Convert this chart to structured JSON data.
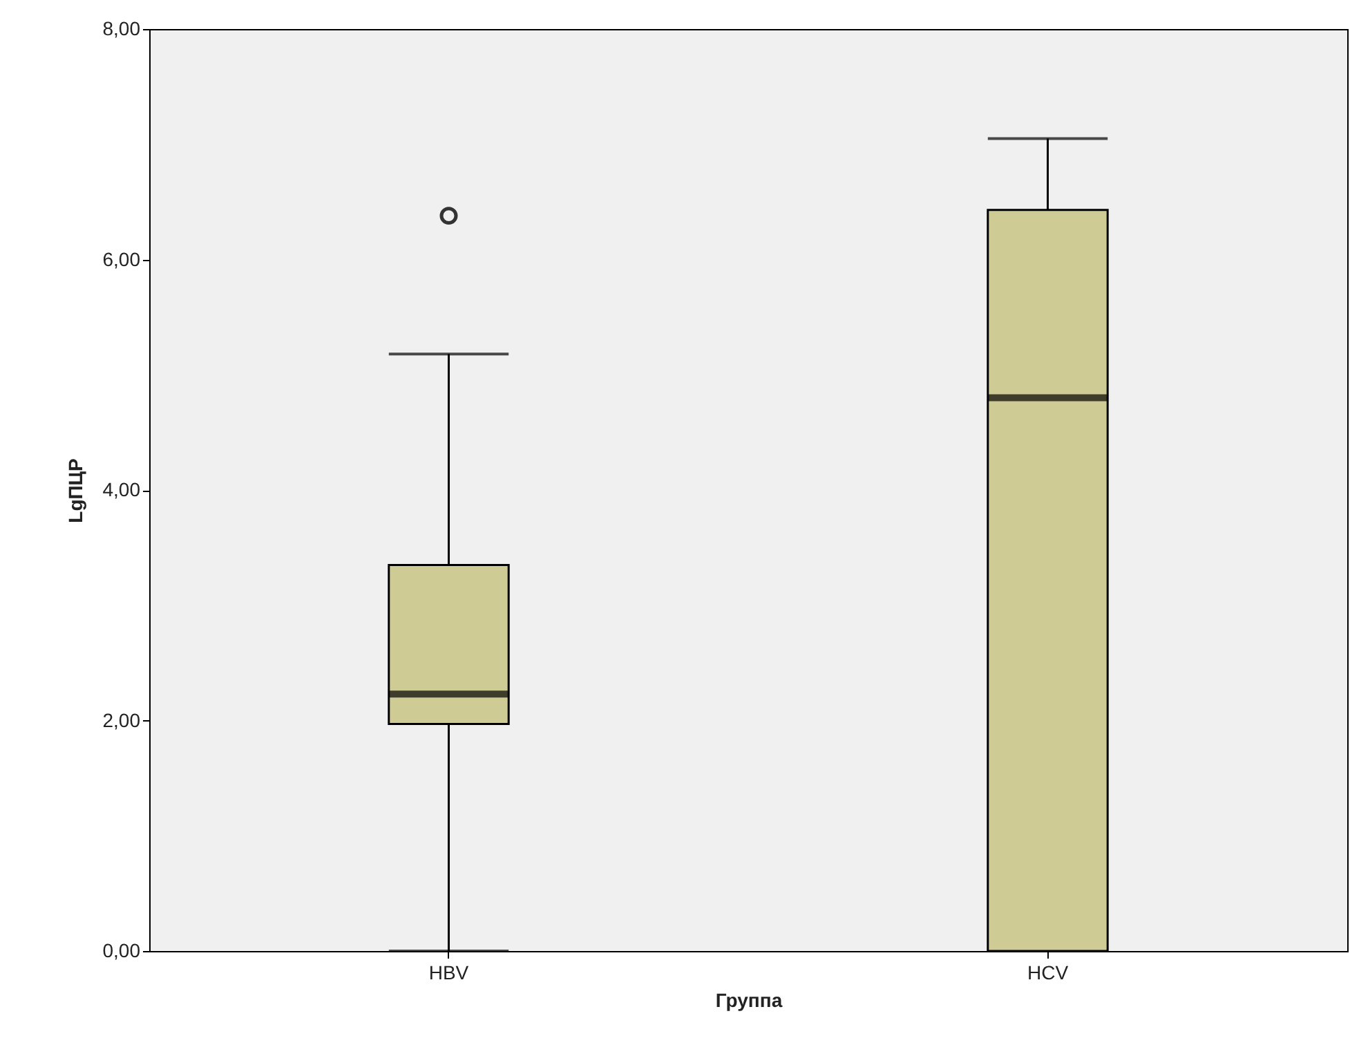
{
  "chart_data": {
    "type": "box",
    "xlabel": "Группа",
    "ylabel": "LgПЦР",
    "categories": [
      "HBV",
      "HCV"
    ],
    "series": [
      {
        "color": "#cfcb94",
        "boxes": [
          {
            "low": 0,
            "q1": 1.97,
            "median": 2.23,
            "q3": 3.35,
            "high": 5.18,
            "outliers": [
              6.38
            ]
          },
          {
            "low": 0,
            "q1": 0,
            "median": 4.8,
            "q3": 6.43,
            "high": 7.05
          }
        ]
      }
    ],
    "ylim": [
      0,
      8
    ],
    "yticks": [
      {
        "value": 0,
        "label": "0,00"
      },
      {
        "value": 2,
        "label": "2,00"
      },
      {
        "value": 4,
        "label": "4,00"
      },
      {
        "value": 6,
        "label": "6,00"
      },
      {
        "value": 8,
        "label": "8,00"
      }
    ]
  }
}
